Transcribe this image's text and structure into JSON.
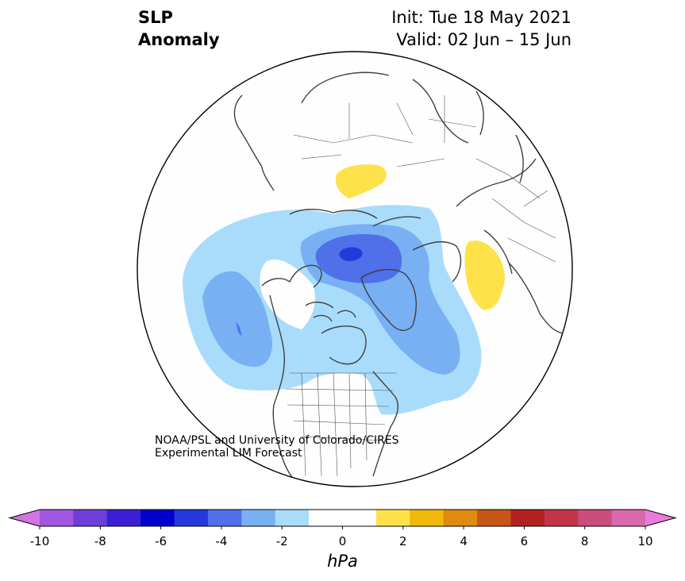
{
  "title": {
    "left_line1": "SLP",
    "left_line2": "Anomaly",
    "init": "Init: Tue 18 May 2021",
    "valid": "Valid: 02 Jun – 15 Jun"
  },
  "credit": {
    "line1": "NOAA/PSL and University of Colorado/CIRES",
    "line2": "Experimental LIM Forecast"
  },
  "colorbar": {
    "units": "hPa",
    "min": -10,
    "max": 10,
    "step": 1,
    "tick_labels": [
      "-10",
      "-8",
      "-6",
      "-4",
      "-2",
      "0",
      "2",
      "4",
      "6",
      "8",
      "10"
    ],
    "colors": [
      "#d474e3",
      "#a056df",
      "#6d3fd9",
      "#3b1fd6",
      "#0000cc",
      "#2339dc",
      "#4f70e9",
      "#78b0f3",
      "#a9dcfb",
      "#ffffff",
      "#ffffff",
      "#ffe24a",
      "#f2b90a",
      "#df8a10",
      "#c75518",
      "#b1221f",
      "#c23549",
      "#cc4c7c",
      "#d869ac",
      "#e97cdb"
    ],
    "extend": "both"
  },
  "map": {
    "projection": "north-polar-stereographic",
    "anomalies": [
      {
        "region": "Arctic / Barents Sea",
        "sign": "negative",
        "min_level": -6
      },
      {
        "region": "Gulf of Alaska / North Pacific",
        "sign": "negative",
        "min_level": -4
      },
      {
        "region": "Greenland / North Atlantic",
        "sign": "negative",
        "min_level": -3
      },
      {
        "region": "Western Russia",
        "sign": "positive",
        "max_level": 1
      },
      {
        "region": "Central Siberia",
        "sign": "positive",
        "max_level": 1
      }
    ],
    "colors": {
      "negative_1": "#a9dcfb",
      "negative_2": "#78b0f3",
      "negative_3": "#4f70e9",
      "negative_4": "#2339dc",
      "positive_1": "#ffe24a",
      "coast": "#404040",
      "border": "#505050"
    }
  }
}
